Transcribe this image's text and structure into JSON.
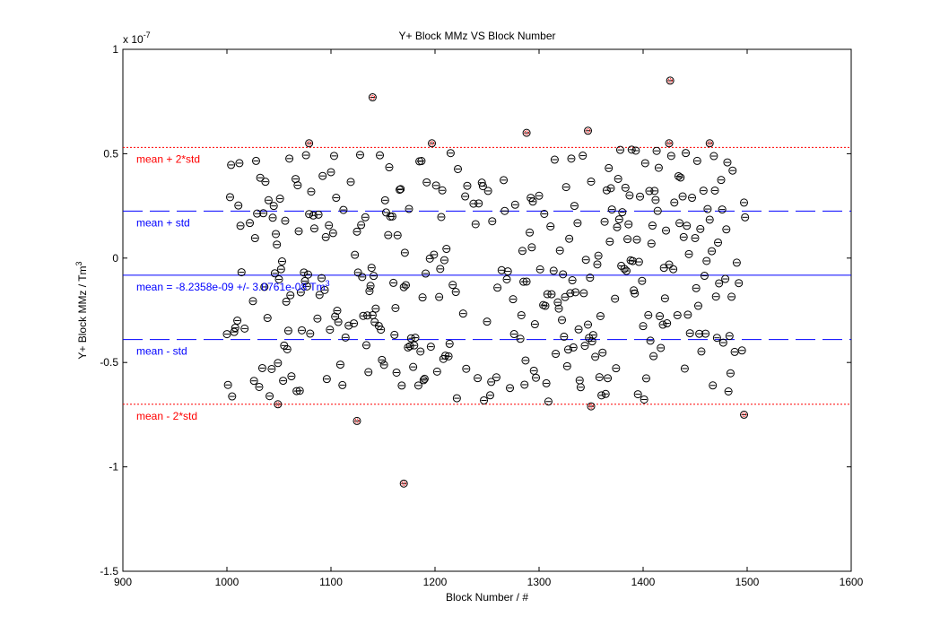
{
  "chart_data": {
    "type": "scatter",
    "title": "Y+ Block MMz VS Block Number",
    "xlabel": "Block Number / #",
    "ylabel": "Y+ Block MMz / Tm",
    "ylabel_sup": "3",
    "y_multiplier": "x 10",
    "y_multiplier_exp": "-7",
    "xlim": [
      900,
      1600
    ],
    "ylim": [
      -1.5,
      1.0
    ],
    "xticks": [
      900,
      1000,
      1100,
      1200,
      1300,
      1400,
      1500,
      1600
    ],
    "xtick_labels": [
      "900",
      "1000",
      "1100",
      "1200",
      "1300",
      "1400",
      "1500",
      "1600"
    ],
    "yticks": [
      -1.5,
      -1.0,
      -0.5,
      0,
      0.5,
      1.0
    ],
    "ytick_labels": [
      "-1.5",
      "-1",
      "-0.5",
      "0",
      "0.5",
      "1"
    ],
    "grid": false,
    "colors": {
      "mean": "#0000ff",
      "std": "#0000ff",
      "two_std": "#ff0000",
      "marker": "#000000"
    },
    "reference_lines": [
      {
        "key": "plus2",
        "label": "mean + 2*std",
        "y": 0.53,
        "style": "dotted",
        "color": "#ff0000"
      },
      {
        "key": "plus1",
        "label": "mean + std",
        "y": 0.225,
        "style": "dashed",
        "color": "#0000ff"
      },
      {
        "key": "mean",
        "label": "mean = -8.2358e-09 +/- 3.0761e-08  Tm",
        "label_sup": "3",
        "y": -0.082,
        "style": "solid",
        "color": "#0000ff"
      },
      {
        "key": "minus1",
        "label": "mean - std",
        "y": -0.39,
        "style": "dashed",
        "color": "#0000ff"
      },
      {
        "key": "minus2",
        "label": "mean - 2*std",
        "y": -0.7,
        "style": "dotted",
        "color": "#ff0000"
      }
    ],
    "outliers": [
      {
        "x": 1079,
        "y": 0.55
      },
      {
        "x": 1140,
        "y": 0.77
      },
      {
        "x": 1197,
        "y": 0.55
      },
      {
        "x": 1288,
        "y": 0.6
      },
      {
        "x": 1347,
        "y": 0.61
      },
      {
        "x": 1426,
        "y": 0.85
      },
      {
        "x": 1425,
        "y": 0.55
      },
      {
        "x": 1464,
        "y": 0.55
      },
      {
        "x": 1049,
        "y": -0.7
      },
      {
        "x": 1350,
        "y": -0.71
      },
      {
        "x": 1497,
        "y": -0.75
      },
      {
        "x": 1125,
        "y": -0.78
      },
      {
        "x": 1170,
        "y": -1.08
      }
    ]
  }
}
